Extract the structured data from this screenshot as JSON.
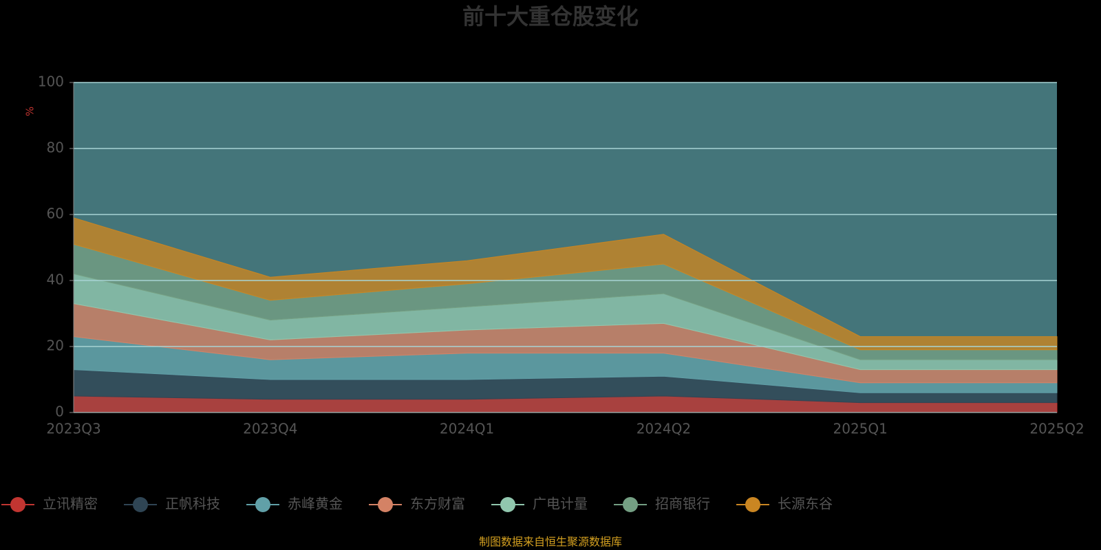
{
  "chart_data": {
    "type": "stacked-area",
    "title": "前十大重仓股变化",
    "y_label": "%",
    "categories": [
      "2023Q3",
      "2023Q4",
      "2024Q1",
      "2024Q2",
      "2025Q1",
      "2025Q2"
    ],
    "series": [
      {
        "name": "立讯精密",
        "color": "#c23531",
        "values": [
          5,
          4,
          4,
          5,
          3,
          3
        ]
      },
      {
        "name": "正帆科技",
        "color": "#2f4554",
        "values": [
          8,
          6,
          6,
          6,
          3,
          3
        ]
      },
      {
        "name": "赤峰黄金",
        "color": "#61a0a8",
        "values": [
          10,
          6,
          8,
          7,
          3,
          3
        ]
      },
      {
        "name": "东方财富",
        "color": "#d48265",
        "values": [
          10,
          6,
          7,
          9,
          4,
          4
        ]
      },
      {
        "name": "广电计量",
        "color": "#91c7ae",
        "values": [
          9,
          6,
          7,
          9,
          3,
          3
        ]
      },
      {
        "name": "招商银行",
        "color": "#749f83",
        "values": [
          9,
          6,
          7,
          9,
          3,
          3
        ]
      },
      {
        "name": "长源东谷",
        "color": "#ca8622",
        "values": [
          8,
          7,
          7,
          9,
          4,
          4
        ]
      }
    ],
    "ylim": [
      0,
      100
    ],
    "yticks": [
      0,
      20,
      40,
      60,
      80,
      100
    ],
    "grid": true,
    "plot_color": "#44757a",
    "source": "制图数据来自恒生聚源数据库"
  }
}
